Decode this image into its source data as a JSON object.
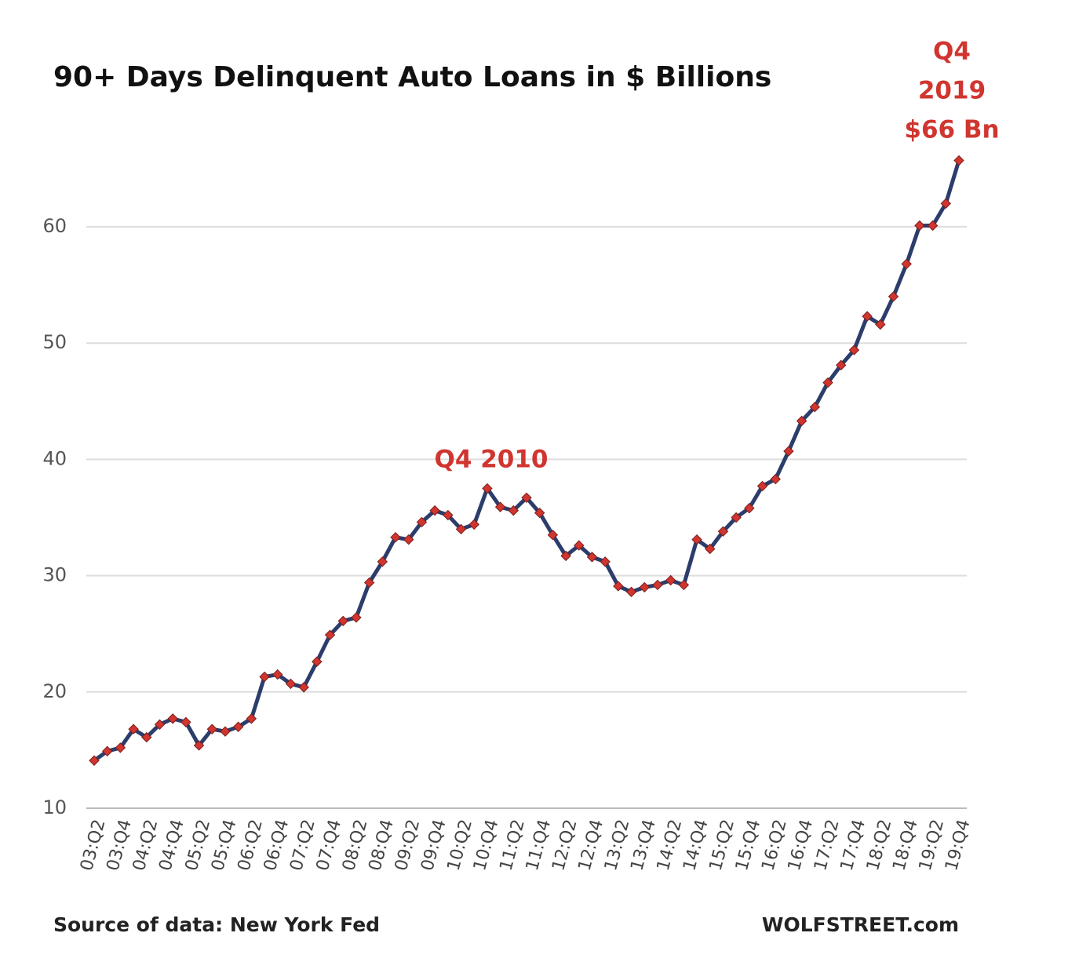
{
  "chart_data": {
    "type": "line",
    "title": "90+ Days Delinquent Auto Loans in $ Billions",
    "source": "Source of data: New York Fed",
    "credit": "WOLFSTREET.com",
    "categories": [
      "03:Q2",
      null,
      "03:Q4",
      null,
      "04:Q2",
      null,
      "04:Q4",
      null,
      "05:Q2",
      null,
      "05:Q4",
      null,
      "06:Q2",
      null,
      "06:Q4",
      null,
      "07:Q2",
      null,
      "07:Q4",
      null,
      "08:Q2",
      null,
      "08:Q4",
      null,
      "09:Q2",
      null,
      "09:Q4",
      null,
      "10:Q2",
      null,
      "10:Q4",
      null,
      "11:Q2",
      null,
      "11:Q4",
      null,
      "12:Q2",
      null,
      "12:Q4",
      null,
      "13:Q2",
      null,
      "13:Q4",
      null,
      "14:Q2",
      null,
      "14:Q4",
      null,
      "15:Q2",
      null,
      "15:Q4",
      null,
      "16:Q2",
      null,
      "16:Q4",
      null,
      "17:Q2",
      null,
      "17:Q4",
      null,
      "18:Q2",
      null,
      "18:Q4",
      null,
      "19:Q2",
      null,
      "19:Q4"
    ],
    "series": [
      {
        "color": "#2c3d6b",
        "marker_color": "#d0352f",
        "values": [
          14.1,
          14.9,
          15.2,
          16.8,
          16.1,
          17.2,
          17.7,
          17.4,
          15.4,
          16.8,
          16.6,
          17.0,
          17.7,
          21.3,
          21.5,
          20.7,
          20.4,
          22.6,
          24.9,
          26.1,
          26.4,
          29.4,
          31.2,
          33.3,
          33.1,
          34.6,
          35.6,
          35.2,
          34.0,
          34.4,
          37.5,
          35.9,
          35.6,
          36.7,
          35.4,
          33.5,
          31.7,
          32.6,
          31.6,
          31.2,
          29.1,
          28.6,
          29.0,
          29.2,
          29.6,
          29.2,
          33.1,
          32.3,
          33.8,
          35.0,
          35.8,
          37.7,
          38.3,
          40.7,
          43.3,
          44.5,
          46.6,
          48.1,
          49.4,
          52.3,
          51.6,
          54.0,
          56.8,
          60.1,
          60.1,
          62.0,
          65.7
        ]
      }
    ],
    "ylim": [
      10,
      70
    ],
    "yticks": [
      10,
      20,
      30,
      40,
      50,
      60
    ],
    "grid": true,
    "annotations": [
      {
        "lines": [
          "Q4 2010"
        ]
      },
      {
        "lines": [
          "Q4",
          "2019",
          "$66 Bn"
        ]
      }
    ],
    "annotation_color": "#d0352f"
  }
}
